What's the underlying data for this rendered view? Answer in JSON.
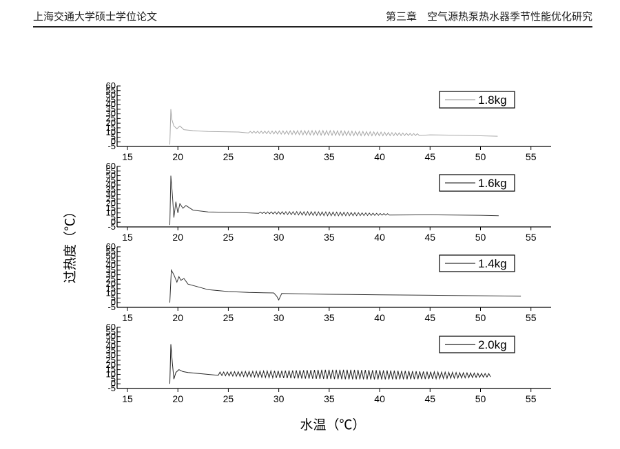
{
  "header": {
    "left": "上海交通大学硕士学位论文",
    "right": "第三章　空气源热泵热水器季节性能优化研究"
  },
  "figure": {
    "ylabel": "过热度（℃）",
    "xlabel": "水温（℃）"
  },
  "chart_data": [
    {
      "type": "line",
      "series": [
        {
          "name": "1.8kg",
          "x": [
            19.2,
            19.3,
            19.4,
            19.6,
            19.9,
            20.2,
            20.6,
            21.5,
            23,
            26,
            30,
            35,
            40,
            45,
            48,
            51.7
          ],
          "y": [
            -3,
            35,
            24,
            17,
            14,
            17,
            13,
            12,
            11,
            10.5,
            10,
            9.5,
            8.5,
            7.5,
            7,
            6
          ],
          "oscillation": {
            "x_start": 27,
            "x_end": 44,
            "amplitude": 2.5
          }
        }
      ],
      "xlim": [
        15,
        57
      ],
      "ylim": [
        -5,
        60
      ],
      "xticks": [
        15,
        20,
        25,
        30,
        35,
        40,
        45,
        50,
        55
      ],
      "yticks": [
        -5,
        0,
        5,
        10,
        15,
        20,
        25,
        30,
        35,
        40,
        45,
        50,
        55,
        60
      ],
      "legend": "top-right"
    },
    {
      "type": "line",
      "series": [
        {
          "name": "1.6kg",
          "x": [
            19.2,
            19.3,
            19.45,
            19.6,
            19.8,
            20.0,
            20.2,
            20.5,
            20.8,
            21.5,
            23,
            26,
            30,
            35,
            40,
            45,
            50,
            51.8
          ],
          "y": [
            -3,
            50,
            30,
            5,
            22,
            10,
            20,
            15,
            18,
            13,
            11,
            10.5,
            10,
            9,
            8.5,
            8,
            7.5,
            7
          ],
          "oscillation": {
            "x_start": 28,
            "x_end": 41,
            "amplitude": 2
          }
        }
      ],
      "xlim": [
        15,
        57
      ],
      "ylim": [
        -5,
        60
      ],
      "xticks": [
        15,
        20,
        25,
        30,
        35,
        40,
        45,
        50,
        55
      ],
      "yticks": [
        -5,
        0,
        5,
        10,
        15,
        20,
        25,
        30,
        35,
        40,
        45,
        50,
        55,
        60
      ],
      "legend": "top-right"
    },
    {
      "type": "line",
      "series": [
        {
          "name": "1.4kg",
          "x": [
            19.2,
            19.35,
            19.6,
            19.9,
            20.1,
            20.3,
            20.6,
            21,
            22,
            23,
            25,
            27,
            29.5,
            29.8,
            30,
            30.3,
            32,
            35,
            40,
            45,
            50,
            54
          ],
          "y": [
            0,
            35,
            30,
            22,
            28,
            24,
            26,
            20,
            17,
            14,
            12,
            11,
            10.5,
            7,
            3,
            10,
            9.5,
            9,
            8.5,
            8,
            7.5,
            7
          ]
        }
      ],
      "xlim": [
        15,
        57
      ],
      "ylim": [
        -5,
        60
      ],
      "xticks": [
        15,
        20,
        25,
        30,
        35,
        40,
        45,
        50,
        55
      ],
      "yticks": [
        -5,
        0,
        5,
        10,
        15,
        20,
        25,
        30,
        35,
        40,
        45,
        50,
        55,
        60
      ],
      "legend": "top-right"
    },
    {
      "type": "line",
      "series": [
        {
          "name": "2.0kg",
          "x": [
            19.2,
            19.3,
            19.45,
            19.6,
            19.8,
            20.1,
            20.5,
            21,
            22,
            25,
            30,
            35,
            40,
            45,
            50,
            51
          ],
          "y": [
            0,
            42,
            22,
            5,
            12,
            15,
            13,
            12,
            11,
            10.5,
            10,
            10,
            9.5,
            9,
            9,
            9
          ],
          "oscillation": {
            "x_start": 24,
            "x_end": 51,
            "amplitude": 5
          }
        }
      ],
      "xlim": [
        15,
        57
      ],
      "ylim": [
        -5,
        60
      ],
      "xticks": [
        15,
        20,
        25,
        30,
        35,
        40,
        45,
        50,
        55
      ],
      "yticks": [
        -5,
        0,
        5,
        10,
        15,
        20,
        25,
        30,
        35,
        40,
        45,
        50,
        55,
        60
      ],
      "legend": "top-right"
    }
  ]
}
